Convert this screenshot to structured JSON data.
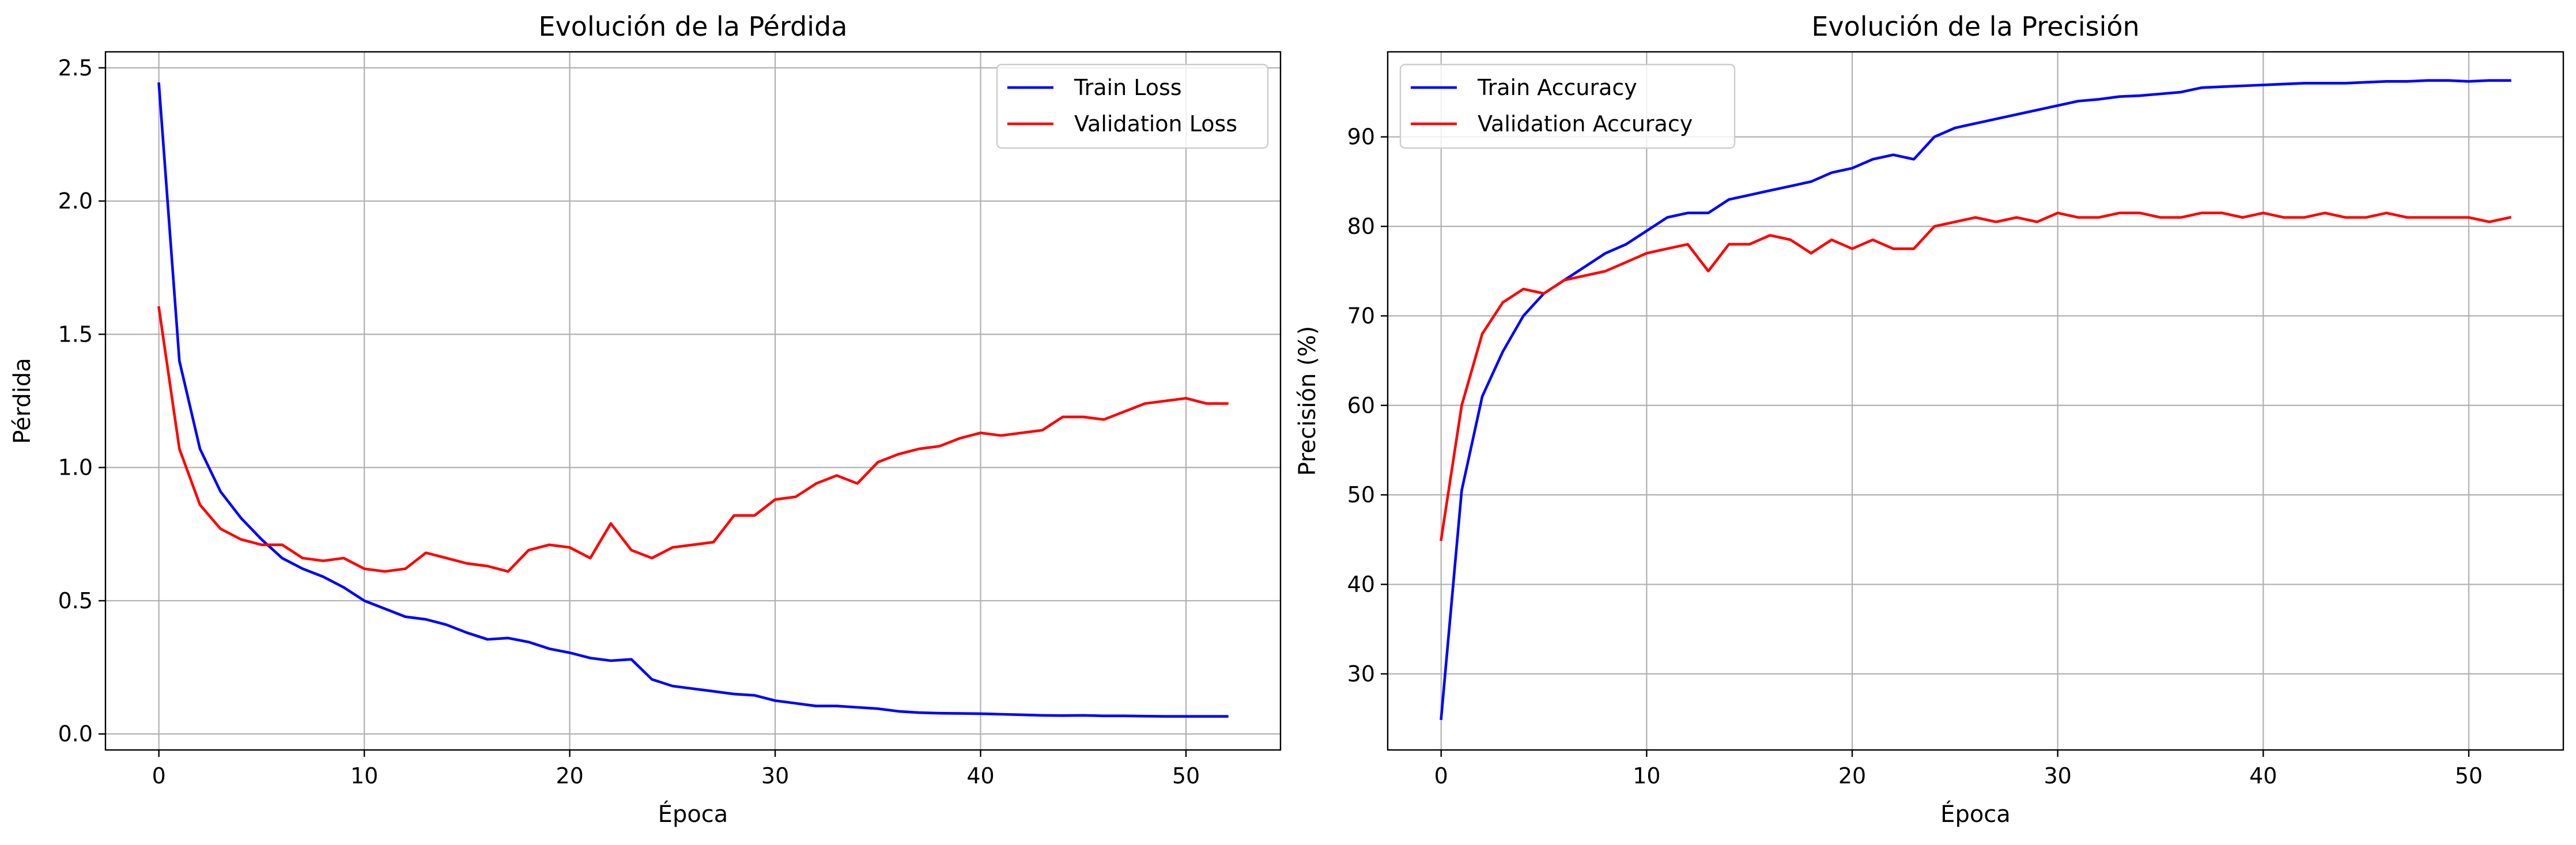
{
  "chart_data": [
    {
      "type": "line",
      "title": "Evolución de la Pérdida",
      "xlabel": "Época",
      "ylabel": "Pérdida",
      "xlim": [
        -2.6,
        54.6
      ],
      "ylim": [
        -0.06,
        2.56
      ],
      "xticks": [
        0,
        10,
        20,
        30,
        40,
        50
      ],
      "yticks": [
        0.0,
        0.5,
        1.0,
        1.5,
        2.0,
        2.5
      ],
      "ytick_format": 1,
      "grid": true,
      "legend_position": "top-right",
      "series": [
        {
          "name": "Train Loss",
          "color": "#0000ff",
          "x": [
            0,
            1,
            2,
            3,
            4,
            5,
            6,
            7,
            8,
            9,
            10,
            11,
            12,
            13,
            14,
            15,
            16,
            17,
            18,
            19,
            20,
            21,
            22,
            23,
            24,
            25,
            26,
            27,
            28,
            29,
            30,
            31,
            32,
            33,
            34,
            35,
            36,
            37,
            38,
            39,
            40,
            41,
            42,
            43,
            44,
            45,
            46,
            47,
            48,
            49,
            50,
            51,
            52
          ],
          "values": [
            2.44,
            1.4,
            1.07,
            0.91,
            0.81,
            0.73,
            0.66,
            0.62,
            0.59,
            0.55,
            0.5,
            0.47,
            0.44,
            0.43,
            0.41,
            0.38,
            0.355,
            0.36,
            0.345,
            0.32,
            0.305,
            0.285,
            0.275,
            0.28,
            0.205,
            0.18,
            0.17,
            0.16,
            0.15,
            0.145,
            0.125,
            0.115,
            0.105,
            0.105,
            0.1,
            0.095,
            0.085,
            0.08,
            0.078,
            0.077,
            0.076,
            0.074,
            0.072,
            0.07,
            0.069,
            0.07,
            0.068,
            0.068,
            0.067,
            0.066,
            0.066,
            0.066,
            0.066
          ]
        },
        {
          "name": "Validation Loss",
          "color": "#ff0000",
          "x": [
            0,
            1,
            2,
            3,
            4,
            5,
            6,
            7,
            8,
            9,
            10,
            11,
            12,
            13,
            14,
            15,
            16,
            17,
            18,
            19,
            20,
            21,
            22,
            23,
            24,
            25,
            26,
            27,
            28,
            29,
            30,
            31,
            32,
            33,
            34,
            35,
            36,
            37,
            38,
            39,
            40,
            41,
            42,
            43,
            44,
            45,
            46,
            47,
            48,
            49,
            50,
            51,
            52
          ],
          "values": [
            1.6,
            1.07,
            0.86,
            0.77,
            0.73,
            0.71,
            0.71,
            0.66,
            0.65,
            0.66,
            0.62,
            0.61,
            0.62,
            0.68,
            0.66,
            0.64,
            0.63,
            0.61,
            0.69,
            0.71,
            0.7,
            0.66,
            0.79,
            0.69,
            0.66,
            0.7,
            0.71,
            0.72,
            0.82,
            0.82,
            0.88,
            0.89,
            0.94,
            0.97,
            0.94,
            1.02,
            1.05,
            1.07,
            1.08,
            1.11,
            1.13,
            1.12,
            1.13,
            1.14,
            1.19,
            1.19,
            1.18,
            1.21,
            1.24,
            1.25,
            1.26,
            1.24,
            1.24
          ]
        }
      ]
    },
    {
      "type": "line",
      "title": "Evolución de la Precisión",
      "xlabel": "Época",
      "ylabel": "Precisión (%)",
      "xlim": [
        -2.6,
        54.6
      ],
      "ylim": [
        21.5,
        99.5
      ],
      "xticks": [
        0,
        10,
        20,
        30,
        40,
        50
      ],
      "yticks": [
        30,
        40,
        50,
        60,
        70,
        80,
        90
      ],
      "ytick_format": 0,
      "grid": true,
      "legend_position": "top-left",
      "series": [
        {
          "name": "Train Accuracy",
          "color": "#0000ff",
          "x": [
            0,
            1,
            2,
            3,
            4,
            5,
            6,
            7,
            8,
            9,
            10,
            11,
            12,
            13,
            14,
            15,
            16,
            17,
            18,
            19,
            20,
            21,
            22,
            23,
            24,
            25,
            26,
            27,
            28,
            29,
            30,
            31,
            32,
            33,
            34,
            35,
            36,
            37,
            38,
            39,
            40,
            41,
            42,
            43,
            44,
            45,
            46,
            47,
            48,
            49,
            50,
            51,
            52
          ],
          "values": [
            25.0,
            50.5,
            61.0,
            66.0,
            70.0,
            72.5,
            74.0,
            75.5,
            77.0,
            78.0,
            79.5,
            81.0,
            81.5,
            81.5,
            83.0,
            83.5,
            84.0,
            84.5,
            85.0,
            86.0,
            86.5,
            87.5,
            88.0,
            87.5,
            90.0,
            91.0,
            91.5,
            92.0,
            92.5,
            93.0,
            93.5,
            94.0,
            94.2,
            94.5,
            94.6,
            94.8,
            95.0,
            95.5,
            95.6,
            95.7,
            95.8,
            95.9,
            96.0,
            96.0,
            96.0,
            96.1,
            96.2,
            96.2,
            96.3,
            96.3,
            96.2,
            96.3,
            96.3
          ]
        },
        {
          "name": "Validation Accuracy",
          "color": "#ff0000",
          "x": [
            0,
            1,
            2,
            3,
            4,
            5,
            6,
            7,
            8,
            9,
            10,
            11,
            12,
            13,
            14,
            15,
            16,
            17,
            18,
            19,
            20,
            21,
            22,
            23,
            24,
            25,
            26,
            27,
            28,
            29,
            30,
            31,
            32,
            33,
            34,
            35,
            36,
            37,
            38,
            39,
            40,
            41,
            42,
            43,
            44,
            45,
            46,
            47,
            48,
            49,
            50,
            51,
            52
          ],
          "values": [
            45.0,
            60.0,
            68.0,
            71.5,
            73.0,
            72.5,
            74.0,
            74.5,
            75.0,
            76.0,
            77.0,
            77.5,
            78.0,
            75.0,
            78.0,
            78.0,
            79.0,
            78.5,
            77.0,
            78.5,
            77.5,
            78.5,
            77.5,
            77.5,
            80.0,
            80.5,
            81.0,
            80.5,
            81.0,
            80.5,
            81.5,
            81.0,
            81.0,
            81.5,
            81.5,
            81.0,
            81.0,
            81.5,
            81.5,
            81.0,
            81.5,
            81.0,
            81.0,
            81.5,
            81.0,
            81.0,
            81.5,
            81.0,
            81.0,
            81.0,
            81.0,
            80.5,
            81.0
          ]
        }
      ]
    }
  ]
}
